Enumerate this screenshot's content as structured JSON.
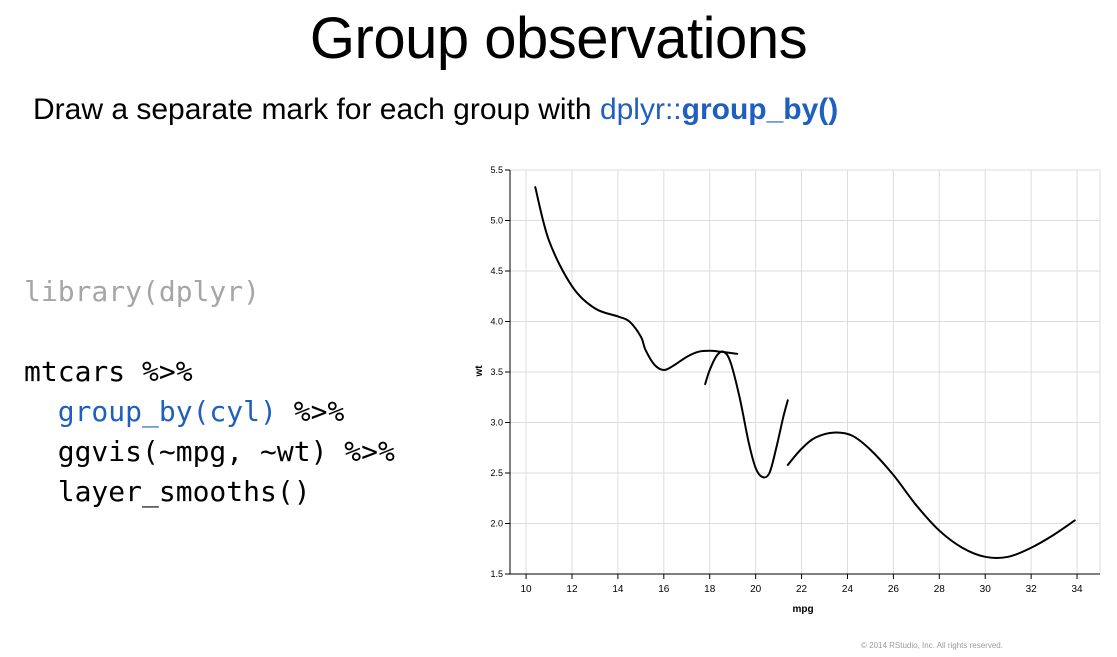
{
  "slide": {
    "title": "Group observations",
    "subtitle_text": "Draw a separate mark for each group with ",
    "subtitle_pkg": "dplyr::",
    "subtitle_fn": "group_by()",
    "copyright": "© 2014 RStudio, Inc. All rights reserved."
  },
  "code": {
    "line1": "library(dplyr)",
    "line2": "mtcars %>%",
    "line3_fn": "group_by(cyl)",
    "line3_pipe": " %>%",
    "line4": "ggvis(~mpg, ~wt) %>%",
    "line5": "layer_smooths()",
    "colors": {
      "comment": "#a6a6a6",
      "highlight": "#1f5fbf"
    }
  },
  "chart_data": {
    "type": "line",
    "xlabel": "mpg",
    "ylabel": "wt",
    "xlim": [
      9.3,
      35
    ],
    "ylim": [
      1.5,
      5.5
    ],
    "xticks": [
      10,
      12,
      14,
      16,
      18,
      20,
      22,
      24,
      26,
      28,
      30,
      32,
      34
    ],
    "yticks": [
      1.5,
      2.0,
      2.5,
      3.0,
      3.5,
      4.0,
      4.5,
      5.0,
      5.5
    ],
    "grid": true,
    "line_color": "#000000",
    "series": [
      {
        "x": [
          10.4,
          11.0,
          12.0,
          13.0,
          14.0,
          14.5,
          15.0,
          15.2,
          15.6,
          16.0,
          16.4,
          17.0,
          17.5,
          18.0,
          18.5,
          19.2
        ],
        "y": [
          5.33,
          4.8,
          4.35,
          4.13,
          4.05,
          4.0,
          3.85,
          3.72,
          3.57,
          3.52,
          3.56,
          3.65,
          3.7,
          3.71,
          3.7,
          3.68
        ]
      },
      {
        "x": [
          17.8,
          18.0,
          18.3,
          18.6,
          18.9,
          19.3,
          19.7,
          20.0,
          20.3,
          20.6,
          20.9,
          21.2,
          21.4
        ],
        "y": [
          3.38,
          3.52,
          3.66,
          3.7,
          3.6,
          3.25,
          2.8,
          2.55,
          2.46,
          2.5,
          2.75,
          3.05,
          3.22
        ]
      },
      {
        "x": [
          21.4,
          22.0,
          22.6,
          23.4,
          24.2,
          25.0,
          26.0,
          27.0,
          28.0,
          29.0,
          30.0,
          31.0,
          32.0,
          33.0,
          33.9
        ],
        "y": [
          2.58,
          2.74,
          2.85,
          2.9,
          2.87,
          2.73,
          2.48,
          2.18,
          1.93,
          1.76,
          1.67,
          1.67,
          1.76,
          1.89,
          2.03
        ]
      }
    ]
  }
}
